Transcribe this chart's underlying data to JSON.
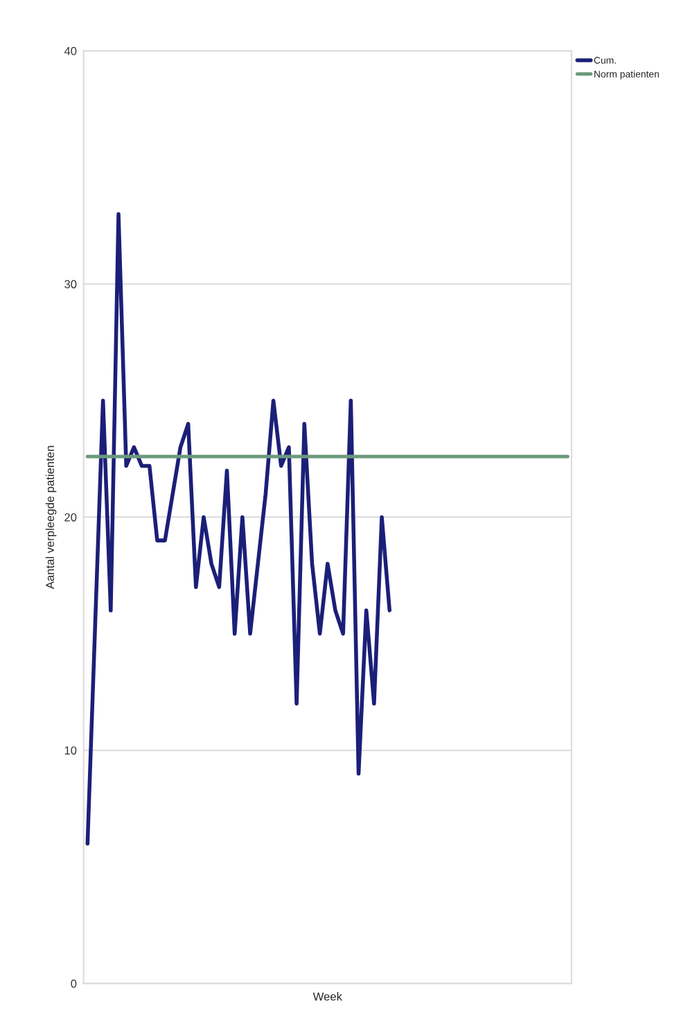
{
  "chart_data": {
    "type": "line",
    "xlabel": "Week",
    "ylabel": "Aantal verpleegde patienten",
    "categories": [
      null,
      null,
      null,
      null,
      null,
      null,
      null,
      null,
      null,
      null,
      null,
      null,
      null,
      null,
      null,
      null,
      null,
      null,
      null,
      null,
      null,
      null,
      null,
      null,
      null,
      null,
      null,
      null,
      null,
      null,
      null,
      null,
      null,
      null,
      null,
      null,
      null,
      null,
      null,
      null,
      null,
      null,
      null,
      null,
      null,
      null,
      null,
      null,
      null,
      null,
      null,
      null,
      null,
      null,
      null,
      null,
      null,
      null,
      null,
      null,
      null,
      null,
      null
    ],
    "series": [
      {
        "name": "Cum.",
        "color": "#1c1f78",
        "values": [
          6,
          15.5,
          25,
          16,
          33,
          22.2,
          23,
          22.2,
          22.2,
          19,
          19,
          21,
          23,
          24,
          17,
          20,
          18,
          17,
          22,
          15,
          20,
          15,
          18,
          21,
          25,
          22.2,
          23,
          12,
          24,
          18,
          15,
          18,
          16,
          15,
          25,
          9,
          16,
          12,
          20,
          16,
          null,
          null,
          null,
          null,
          null,
          null,
          null,
          null,
          null,
          null,
          null,
          null,
          null,
          null,
          null,
          null,
          null,
          null,
          null,
          null,
          null,
          null,
          null
        ]
      },
      {
        "name": "Norm patienten",
        "color": "#6b9a7c",
        "values": [
          22.6,
          22.6,
          22.6,
          22.6,
          22.6,
          22.6,
          22.6,
          22.6,
          22.6,
          22.6,
          22.6,
          22.6,
          22.6,
          22.6,
          22.6,
          22.6,
          22.6,
          22.6,
          22.6,
          22.6,
          22.6,
          22.6,
          22.6,
          22.6,
          22.6,
          22.6,
          22.6,
          22.6,
          22.6,
          22.6,
          22.6,
          22.6,
          22.6,
          22.6,
          22.6,
          22.6,
          22.6,
          22.6,
          22.6,
          22.6,
          22.6,
          22.6,
          22.6,
          22.6,
          22.6,
          22.6,
          22.6,
          22.6,
          22.6,
          22.6,
          22.6,
          22.6,
          22.6,
          22.6,
          22.6,
          22.6,
          22.6,
          22.6,
          22.6,
          22.6,
          22.6,
          22.6,
          22.6
        ]
      }
    ],
    "ylim": [
      0,
      40
    ],
    "yticks": [
      0,
      10,
      20,
      30,
      40
    ],
    "grid": "y",
    "legend": "top right"
  }
}
